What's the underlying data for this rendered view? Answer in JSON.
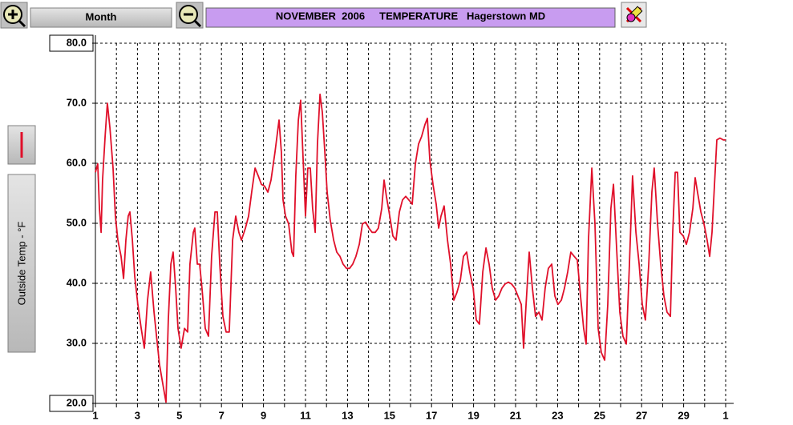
{
  "chart_data": {
    "type": "line",
    "title": "NOVEMBER  2006     TEMPERATURE   Hagerstown MD",
    "period": "Month",
    "ylabel": "Outside Temp - °F",
    "xlim": [
      1,
      31
    ],
    "xticks": [
      1,
      3,
      5,
      7,
      9,
      11,
      13,
      15,
      17,
      19,
      21,
      23,
      25,
      27,
      29,
      {
        "value": 31,
        "label": "1"
      }
    ],
    "x_minor_ticks": [
      2,
      4,
      6,
      8,
      10,
      12,
      14,
      16,
      18,
      20,
      22,
      24,
      26,
      28,
      30
    ],
    "ylim": [
      20,
      80
    ],
    "yticks": [
      {
        "value": 20,
        "label": "20.0"
      },
      {
        "value": 30,
        "label": "30.0"
      },
      {
        "value": 40,
        "label": "40.0"
      },
      {
        "value": 50,
        "label": "50.0"
      },
      {
        "value": 60,
        "label": "60.0"
      },
      {
        "value": 70,
        "label": "70.0"
      },
      {
        "value": 80,
        "label": "80.0"
      }
    ],
    "grid": true,
    "x": [
      1.0,
      1.11,
      1.19,
      1.27,
      1.34,
      1.46,
      1.57,
      1.69,
      1.84,
      1.95,
      2.07,
      2.22,
      2.34,
      2.45,
      2.56,
      2.64,
      2.76,
      2.87,
      3.02,
      3.18,
      3.33,
      3.48,
      3.63,
      3.79,
      3.94,
      4.05,
      4.21,
      4.36,
      4.47,
      4.59,
      4.7,
      4.82,
      4.93,
      5.08,
      5.24,
      5.39,
      5.5,
      5.66,
      5.73,
      5.85,
      5.96,
      6.08,
      6.23,
      6.38,
      6.53,
      6.69,
      6.8,
      6.92,
      7.07,
      7.22,
      7.37,
      7.53,
      7.68,
      7.83,
      7.95,
      8.14,
      8.29,
      8.44,
      8.6,
      8.75,
      8.9,
      9.05,
      9.21,
      9.36,
      9.55,
      9.74,
      9.85,
      9.93,
      10.05,
      10.2,
      10.35,
      10.43,
      10.54,
      10.66,
      10.77,
      10.89,
      11.0,
      11.11,
      11.23,
      11.34,
      11.46,
      11.57,
      11.69,
      11.8,
      11.92,
      12.03,
      12.18,
      12.34,
      12.49,
      12.64,
      12.79,
      12.95,
      13.1,
      13.25,
      13.4,
      13.56,
      13.71,
      13.86,
      14.02,
      14.17,
      14.32,
      14.47,
      14.63,
      14.74,
      14.85,
      15.01,
      15.16,
      15.31,
      15.47,
      15.62,
      15.77,
      15.92,
      16.08,
      16.23,
      16.38,
      16.53,
      16.69,
      16.8,
      16.92,
      17.07,
      17.22,
      17.34,
      17.45,
      17.6,
      17.76,
      17.91,
      18.06,
      18.21,
      18.37,
      18.52,
      18.67,
      18.82,
      18.98,
      19.13,
      19.28,
      19.44,
      19.59,
      19.74,
      19.89,
      20.05,
      20.2,
      20.35,
      20.5,
      20.66,
      20.81,
      20.96,
      21.11,
      21.27,
      21.38,
      21.5,
      21.65,
      21.8,
      21.95,
      22.11,
      22.26,
      22.41,
      22.56,
      22.72,
      22.87,
      23.02,
      23.18,
      23.33,
      23.48,
      23.63,
      23.79,
      23.94,
      24.09,
      24.24,
      24.36,
      24.47,
      24.63,
      24.78,
      24.93,
      25.08,
      25.24,
      25.39,
      25.54,
      25.66,
      25.81,
      25.96,
      26.11,
      26.27,
      26.42,
      26.57,
      26.73,
      26.88,
      27.03,
      27.18,
      27.34,
      27.49,
      27.6,
      27.76,
      27.91,
      28.06,
      28.21,
      28.37,
      28.48,
      28.6,
      28.71,
      28.82,
      28.98,
      29.13,
      29.28,
      29.44,
      29.55,
      29.66,
      29.82,
      29.97,
      30.12,
      30.24,
      30.35,
      30.47,
      30.58,
      30.73,
      30.89,
      31.0
    ],
    "series": [
      {
        "color": "#e0102a",
        "values": [
          58.5,
          59.9,
          52.5,
          48.5,
          57.2,
          64.5,
          70,
          65.9,
          59.2,
          51.2,
          47.2,
          44.5,
          40.8,
          47.2,
          51.2,
          51.9,
          47.2,
          41.2,
          36.5,
          32.5,
          29.2,
          37.2,
          41.9,
          35.2,
          30.2,
          26.5,
          23.2,
          20.2,
          33.9,
          43.2,
          45.2,
          39.2,
          32.5,
          29.2,
          32.5,
          31.9,
          43.2,
          48.5,
          49.2,
          43.2,
          43.2,
          38.9,
          32.5,
          31.2,
          44.5,
          51.9,
          51.9,
          43.2,
          34.5,
          31.9,
          31.9,
          47.2,
          51.2,
          48.5,
          47.2,
          49.2,
          51.2,
          55.2,
          59.2,
          57.9,
          56.5,
          56.2,
          55.2,
          57.2,
          61.9,
          67.2,
          61.9,
          53.9,
          51.2,
          49.9,
          45.2,
          44.5,
          57.9,
          67.2,
          70.5,
          60.5,
          51.2,
          59.2,
          59.2,
          52.5,
          48.5,
          63.2,
          71.5,
          68.5,
          61.9,
          55.2,
          50.5,
          47.2,
          45.2,
          44.5,
          43.2,
          42.5,
          42.5,
          43.2,
          44.5,
          46.5,
          49.9,
          50.2,
          49.2,
          48.5,
          48.5,
          49.2,
          52.5,
          57.2,
          54.5,
          51.2,
          47.9,
          47.2,
          51.9,
          53.9,
          54.5,
          53.9,
          53.2,
          59.9,
          63.2,
          64.5,
          66.5,
          67.5,
          60.5,
          56.5,
          53.2,
          49.2,
          51.2,
          52.9,
          47.2,
          43.2,
          37.2,
          38.5,
          40.5,
          44.5,
          45.2,
          41.9,
          39.2,
          33.9,
          33.2,
          41.9,
          45.9,
          43.2,
          39.2,
          37.2,
          37.9,
          39.2,
          39.9,
          40.2,
          39.9,
          39.2,
          37.9,
          36.5,
          29.2,
          36.5,
          45.2,
          39.2,
          34.5,
          35.2,
          33.9,
          39.2,
          42.5,
          43.2,
          37.9,
          36.5,
          37.2,
          39.2,
          41.9,
          45.2,
          44.5,
          43.9,
          37.9,
          32.5,
          29.9,
          47.2,
          59.2,
          49.9,
          32.5,
          28.5,
          27.2,
          36.5,
          52.5,
          56.5,
          45.9,
          35.2,
          31.2,
          29.9,
          43.2,
          57.9,
          48.5,
          43.2,
          36.5,
          33.9,
          43.2,
          55.2,
          59.2,
          49.9,
          43.2,
          37.9,
          35.2,
          34.5,
          48.5,
          58.5,
          58.5,
          48.5,
          47.9,
          46.5,
          48.5,
          52.5,
          57.6,
          55.2,
          51.9,
          49.9,
          47.2,
          44.5,
          48.5,
          56.5,
          63.9,
          64.2,
          63.9,
          63.9
        ]
      }
    ]
  }
}
